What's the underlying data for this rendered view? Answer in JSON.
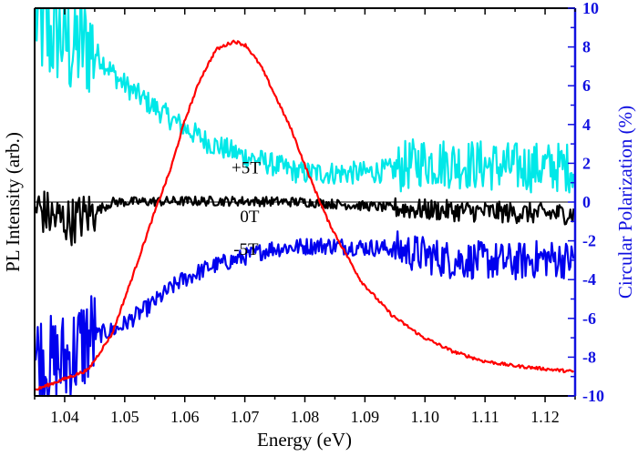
{
  "chart_data": {
    "type": "line",
    "xlabel": "Energy (eV)",
    "ylabel_left": "PL Intensity (arb.)",
    "ylabel_right": "Circular Polarization (%)",
    "xlim": [
      1.035,
      1.125
    ],
    "ylim_left": [
      0,
      1
    ],
    "ylim_right": [
      -10,
      10
    ],
    "x_ticks": [
      "1.04",
      "1.05",
      "1.06",
      "1.07",
      "1.08",
      "1.09",
      "1.10",
      "1.11",
      "1.12"
    ],
    "y_right_ticks": [
      "10",
      "8",
      "6",
      "4",
      "2",
      "0",
      "-2",
      "-4",
      "-6",
      "-8",
      "-10"
    ],
    "grid": false,
    "colors": {
      "pl": "#ff0000",
      "plus5T": "#00e8e8",
      "zero": "#000000",
      "minus5T": "#0000ee",
      "right_axis": "#1010e0"
    },
    "series": [
      {
        "name": "PL",
        "axis": "left",
        "color": "#ff0000",
        "noise": 0.004,
        "x": [
          1.035,
          1.0439,
          1.0479,
          1.0515,
          1.055,
          1.0576,
          1.06,
          1.0626,
          1.0652,
          1.0682,
          1.0702,
          1.0727,
          1.0752,
          1.0778,
          1.0803,
          1.0839,
          1.0858,
          1.0894,
          1.0945,
          1.0995,
          1.1046,
          1.1097,
          1.1147,
          1.1198,
          1.1244
        ],
        "y": [
          0.015,
          0.067,
          0.16,
          0.317,
          0.475,
          0.583,
          0.71,
          0.818,
          0.893,
          0.915,
          0.904,
          0.85,
          0.77,
          0.685,
          0.583,
          0.45,
          0.395,
          0.295,
          0.208,
          0.153,
          0.115,
          0.09,
          0.078,
          0.07,
          0.063
        ]
      },
      {
        "name": "+5T",
        "axis": "right",
        "color": "#00e8e8",
        "noise": 0.6,
        "x": [
          1.0355,
          1.037,
          1.039,
          1.041,
          1.0439,
          1.049,
          1.054,
          1.0591,
          1.0641,
          1.0692,
          1.0743,
          1.0793,
          1.0843,
          1.0894,
          1.0945,
          1.0995,
          1.1046,
          1.1097,
          1.1147,
          1.1198,
          1.125
        ],
        "y": [
          9.5,
          8.5,
          8.8,
          8.0,
          8.2,
          6.3,
          5.1,
          4.0,
          3.05,
          2.45,
          1.97,
          1.5,
          1.5,
          1.5,
          1.65,
          2.1,
          2.0,
          1.9,
          1.8,
          1.8,
          1.8
        ]
      },
      {
        "name": "0T",
        "axis": "right",
        "color": "#000000",
        "noise": 0.25,
        "x": [
          1.0355,
          1.038,
          1.041,
          1.045,
          1.048,
          1.06,
          1.07,
          1.08,
          1.09,
          1.1,
          1.11,
          1.12,
          1.125
        ],
        "y": [
          -0.3,
          -0.8,
          -1.0,
          -0.5,
          0.0,
          0.05,
          0.05,
          0.0,
          -0.2,
          -0.4,
          -0.5,
          -0.6,
          -0.6
        ]
      },
      {
        "name": "-5T",
        "axis": "right",
        "color": "#0000ee",
        "noise": 0.45,
        "x": [
          1.0355,
          1.038,
          1.041,
          1.044,
          1.049,
          1.054,
          1.0591,
          1.0641,
          1.0692,
          1.0743,
          1.0818,
          1.0843,
          1.0945,
          1.0995,
          1.1046,
          1.1097,
          1.1147,
          1.1198,
          1.125
        ],
        "y": [
          -8.0,
          -8.5,
          -8.0,
          -7.0,
          -6.5,
          -5.4,
          -4.1,
          -3.35,
          -2.9,
          -2.4,
          -2.25,
          -2.25,
          -2.4,
          -2.7,
          -3.0,
          -3.0,
          -3.1,
          -2.9,
          -3.0
        ]
      }
    ],
    "annotations": [
      {
        "text": "+5T",
        "x": 1.0702,
        "y": 1.8
      },
      {
        "text": "0T",
        "x": 1.0708,
        "y": -0.7
      },
      {
        "text": "-5T",
        "x": 1.0702,
        "y": -2.4
      }
    ],
    "reference_line": {
      "axis": "right",
      "y": 0
    }
  }
}
